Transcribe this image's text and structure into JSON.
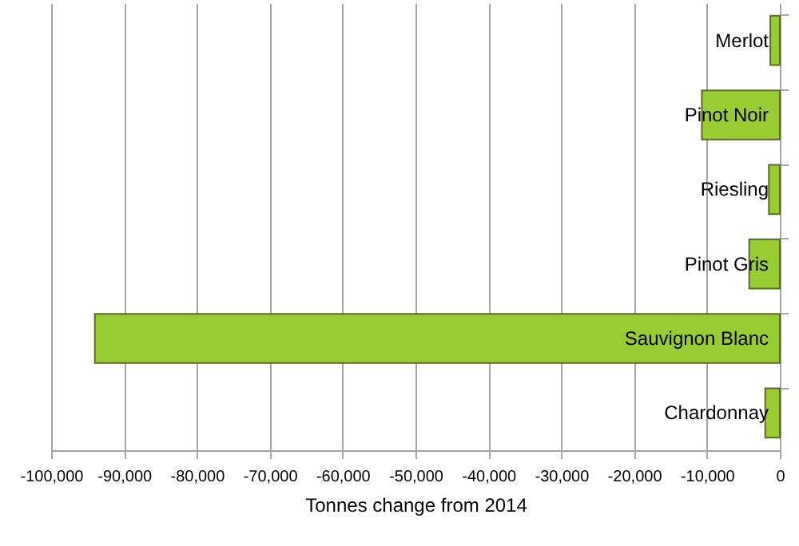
{
  "chart_data": {
    "type": "bar",
    "orientation": "horizontal",
    "xlabel": "Tonnes change from 2014",
    "categories": [
      "Merlot",
      "Pinot Noir",
      "Riesling",
      "Pinot Gris",
      "Sauvignon Blanc",
      "Chardonnay"
    ],
    "values": [
      -1300,
      -10700,
      -1500,
      -4200,
      -94000,
      -2000
    ],
    "color": "#99cc33",
    "xlim": [
      -100000,
      0
    ],
    "xticks": [
      {
        "value": -100000,
        "label": "-100,000"
      },
      {
        "value": -90000,
        "label": "-90,000"
      },
      {
        "value": -80000,
        "label": "-80,000"
      },
      {
        "value": -70000,
        "label": "-70,000"
      },
      {
        "value": -60000,
        "label": "-60,000"
      },
      {
        "value": -50000,
        "label": "-50,000"
      },
      {
        "value": -40000,
        "label": "-40,000"
      },
      {
        "value": -30000,
        "label": "-30,000"
      },
      {
        "value": -20000,
        "label": "-20,000"
      },
      {
        "value": -10000,
        "label": "-10,000"
      },
      0
    ],
    "grid": "x"
  }
}
